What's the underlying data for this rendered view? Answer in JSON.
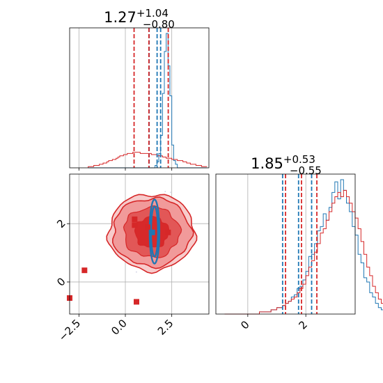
{
  "chart_data": [
    {
      "type": "histogram",
      "panel": "marginal-x",
      "title": {
        "value": "1.27",
        "plus": "+1.04",
        "minus": "−0.80"
      },
      "xlim": [
        -3.0,
        4.5
      ],
      "bins": {
        "start": -2.0,
        "width": 0.1
      },
      "series": [
        {
          "color": "#1f77b4",
          "counts": [
            0,
            0,
            0,
            0,
            0,
            0,
            0,
            0,
            0,
            0,
            0,
            0,
            0,
            0,
            0,
            0,
            0,
            0,
            0,
            0,
            0,
            0,
            0,
            0,
            0,
            0,
            0,
            0,
            0,
            0,
            0,
            0,
            0,
            0,
            0,
            0,
            2,
            5,
            12,
            27,
            62,
            97,
            112,
            85,
            60,
            19,
            6,
            3,
            0,
            0,
            0,
            0,
            0,
            0,
            0,
            0,
            0,
            0,
            0,
            0,
            0,
            0,
            0,
            0
          ],
          "quantile_lines": [
            1.28,
            1.71,
            1.9
          ]
        },
        {
          "color": "#d62728",
          "counts": [
            1,
            1,
            1,
            2,
            2,
            2,
            3,
            3,
            4,
            4,
            5,
            6,
            6,
            7,
            7,
            8,
            9,
            10,
            10,
            11,
            11,
            12,
            12,
            12,
            13,
            13,
            13,
            13,
            12,
            12,
            12,
            12,
            12,
            12,
            11,
            11,
            11,
            10,
            10,
            10,
            9,
            9,
            8,
            8,
            8,
            7,
            7,
            7,
            6,
            6,
            6,
            5,
            5,
            4,
            4,
            3,
            3,
            3,
            2,
            2,
            2,
            1,
            1,
            1
          ],
          "quantile_lines": [
            0.47,
            1.27,
            2.31
          ]
        }
      ]
    },
    {
      "type": "histogram",
      "panel": "marginal-y",
      "title": {
        "value": "1.85",
        "plus": "+0.53",
        "minus": "−0.55"
      },
      "xlim": [
        -1.1,
        3.7
      ],
      "x_ticks": [
        "0",
        "2"
      ],
      "bins": {
        "start": -0.8,
        "width": 0.1
      },
      "series": [
        {
          "color": "#1f77b4",
          "counts": [
            0,
            0,
            0,
            0,
            0,
            0,
            0,
            0,
            0,
            0,
            0,
            0,
            1,
            1,
            1,
            1,
            2,
            2,
            3,
            3,
            4,
            5,
            6,
            8,
            9,
            12,
            13,
            16,
            20,
            27,
            28,
            33,
            39,
            41,
            47,
            44,
            50,
            57,
            62,
            54,
            63,
            58,
            52,
            48,
            41,
            37,
            28,
            24,
            17,
            15,
            10,
            8,
            5,
            3,
            2,
            2,
            1,
            1,
            0,
            0,
            0,
            0,
            0,
            0
          ],
          "quantile_lines": [
            1.2,
            1.75,
            2.2
          ]
        },
        {
          "color": "#d62728",
          "counts": [
            0,
            0,
            0,
            0,
            0,
            0,
            0,
            0,
            0,
            0,
            0,
            0,
            1,
            1,
            1,
            1,
            2,
            2,
            3,
            3,
            4,
            5,
            6,
            7,
            8,
            10,
            12,
            14,
            18,
            22,
            25,
            29,
            33,
            38,
            40,
            44,
            48,
            52,
            55,
            57,
            55,
            58,
            55,
            52,
            48,
            45,
            40,
            34,
            28,
            22,
            18,
            13,
            10,
            7,
            5,
            3,
            2,
            1,
            1,
            1,
            0,
            0,
            0,
            0
          ],
          "quantile_lines": [
            1.3,
            1.85,
            2.38
          ]
        }
      ]
    },
    {
      "type": "scatter",
      "panel": "joint",
      "xlim": [
        -3.0,
        4.5
      ],
      "ylim": [
        -1.1,
        3.7
      ],
      "x_ticks": [
        "−2.5",
        "0.0",
        "2.5"
      ],
      "y_ticks": [
        "0",
        "2"
      ],
      "grid": true,
      "series": [
        {
          "color": "#d62728",
          "marker": "square",
          "points": [
            [
              0.5,
              2.15
            ],
            [
              0.5,
              1.95
            ],
            [
              1.2,
              1.88
            ],
            [
              2.3,
              1.7
            ],
            [
              -2.2,
              0.4
            ],
            [
              -3.0,
              -0.55
            ],
            [
              0.6,
              -0.68
            ]
          ]
        },
        {
          "color": "#1f77b4",
          "marker": "square",
          "points": [
            [
              1.45,
              1.7
            ]
          ]
        }
      ],
      "density_contours": [
        {
          "color": "#d62728",
          "center": [
            1.27,
            1.85
          ],
          "spread": [
            0.45,
            0.35
          ]
        },
        {
          "color": "#1f77b4",
          "center": [
            1.57,
            1.73
          ],
          "spread": [
            0.05,
            0.45
          ]
        }
      ]
    }
  ]
}
